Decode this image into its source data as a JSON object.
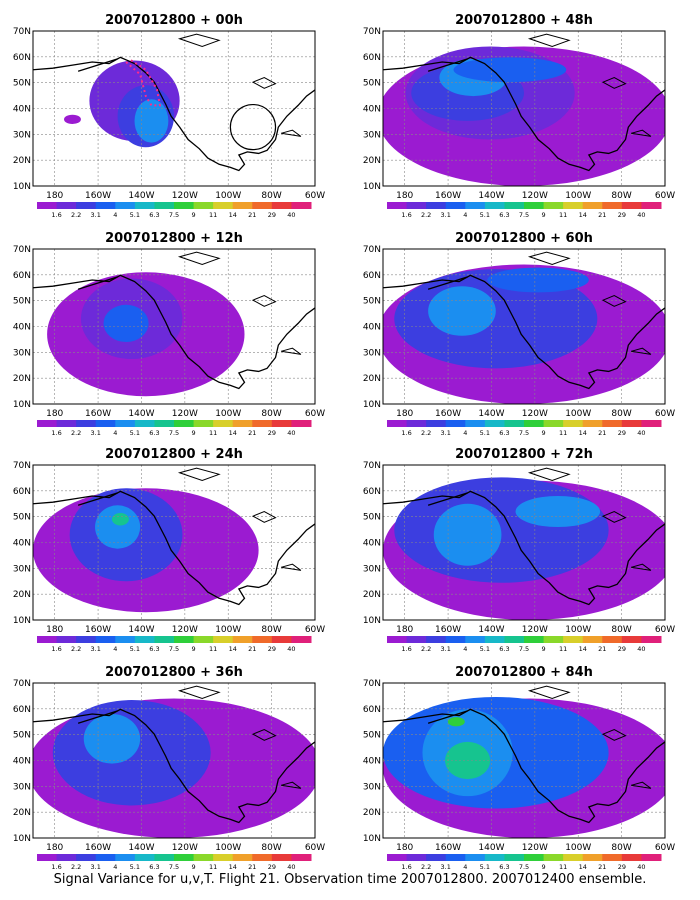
{
  "figure": {
    "caption": "Signal Variance for u,v,T. Flight 21. Observation time 2007012800. 2007012400 ensemble."
  },
  "axes": {
    "lat_ticks": [
      "10N",
      "20N",
      "30N",
      "40N",
      "50N",
      "60N",
      "70N"
    ],
    "lon_ticks": [
      "180",
      "160W",
      "140W",
      "120W",
      "100W",
      "80W",
      "60W"
    ],
    "lon_range": [
      -190,
      -60
    ],
    "lat_range": [
      10,
      70
    ]
  },
  "colorbar": {
    "labels": [
      "1.6",
      "2.2",
      "3.1",
      "4",
      "5.1",
      "6.3",
      "7.5",
      "9",
      "11",
      "14",
      "21",
      "29",
      "40"
    ],
    "colors": [
      "#9b1bd1",
      "#6d2ad9",
      "#3c3ee0",
      "#1a5ff0",
      "#1b8ef0",
      "#17b8c8",
      "#16c48f",
      "#2fcf3a",
      "#8ad82a",
      "#d8cf2a",
      "#f0a02a",
      "#f06a2a",
      "#e83a3a",
      "#e0207a"
    ]
  },
  "panels": [
    {
      "title": "2007012800 + 00h",
      "lead": "00h",
      "flight_track": true,
      "circle": true
    },
    {
      "title": "2007012800 + 48h",
      "lead": "48h"
    },
    {
      "title": "2007012800 + 12h",
      "lead": "12h"
    },
    {
      "title": "2007012800 + 60h",
      "lead": "60h"
    },
    {
      "title": "2007012800 + 24h",
      "lead": "24h"
    },
    {
      "title": "2007012800 + 72h",
      "lead": "72h"
    },
    {
      "title": "2007012800 + 36h",
      "lead": "36h"
    },
    {
      "title": "2007012800 + 84h",
      "lead": "84h"
    }
  ]
}
